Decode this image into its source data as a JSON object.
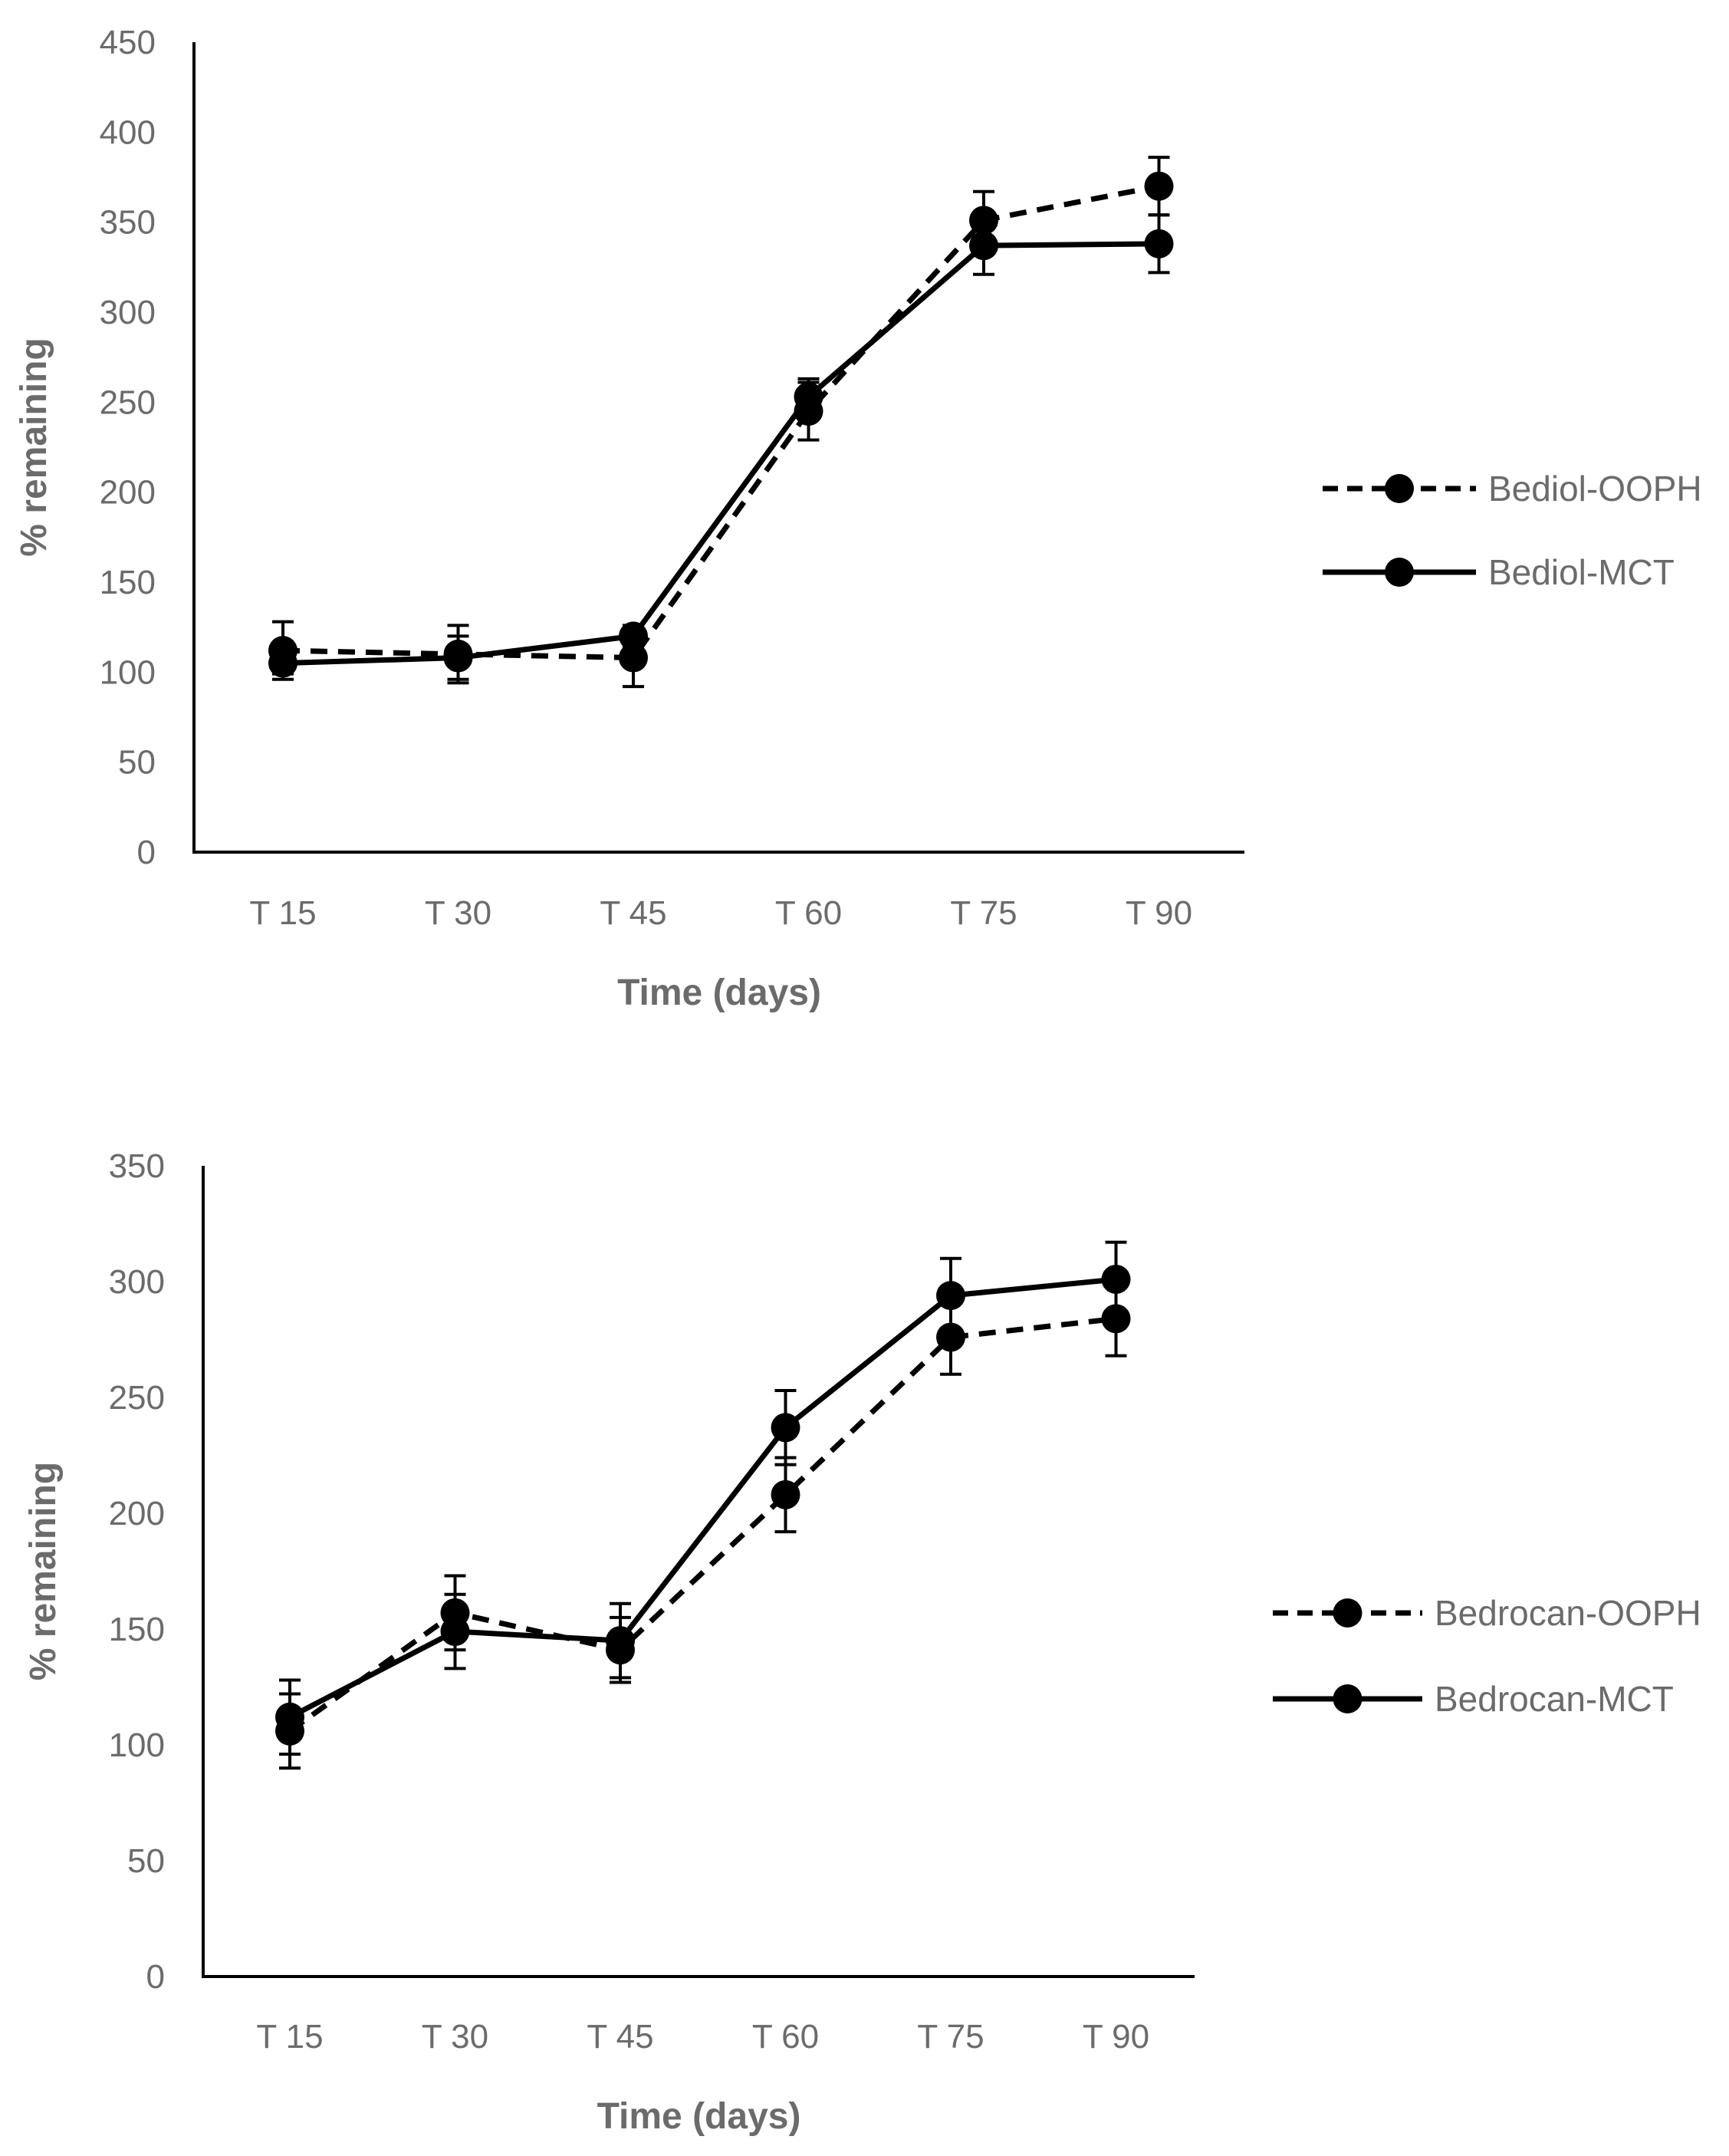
{
  "chart_data": [
    {
      "type": "line",
      "categories": [
        "T 15",
        "T 30",
        "T 45",
        "T 60",
        "T 75",
        "T 90"
      ],
      "xlabel": "Time (days)",
      "ylabel": "% remaining",
      "ylim": [
        0,
        450
      ],
      "yticks": [
        0,
        50,
        100,
        150,
        200,
        250,
        300,
        350,
        400,
        450
      ],
      "legend_position": "right",
      "series": [
        {
          "name": "Bediol-OOPH",
          "style": "dashed",
          "values": [
            112,
            110,
            108,
            245,
            351,
            370
          ],
          "errors": [
            16,
            16,
            16,
            16,
            16,
            16
          ]
        },
        {
          "name": "Bediol-MCT",
          "style": "solid",
          "values": [
            105,
            108,
            120,
            253,
            337,
            338
          ],
          "errors": [
            6,
            12,
            6,
            10,
            16,
            16
          ]
        }
      ]
    },
    {
      "type": "line",
      "categories": [
        "T 15",
        "T 30",
        "T 45",
        "T 60",
        "T 75",
        "T 90"
      ],
      "xlabel": "Time (days)",
      "ylabel": "% remaining",
      "ylim": [
        0,
        350
      ],
      "yticks": [
        0,
        50,
        100,
        150,
        200,
        250,
        300,
        350
      ],
      "legend_position": "right",
      "series": [
        {
          "name": "Bedrocan-OOPH",
          "style": "dashed",
          "values": [
            106,
            157,
            141,
            208,
            276,
            284
          ],
          "errors": [
            16,
            16,
            14,
            16,
            16,
            16
          ]
        },
        {
          "name": "Bedrocan-MCT",
          "style": "solid",
          "values": [
            112,
            149,
            145,
            237,
            294,
            301
          ],
          "errors": [
            16,
            16,
            16,
            16,
            16,
            16
          ]
        }
      ]
    }
  ],
  "colors": {
    "line": "#000000",
    "axis": "#000000",
    "error_bar": "#000000",
    "text": "#6b6b6b",
    "background": "#ffffff"
  }
}
